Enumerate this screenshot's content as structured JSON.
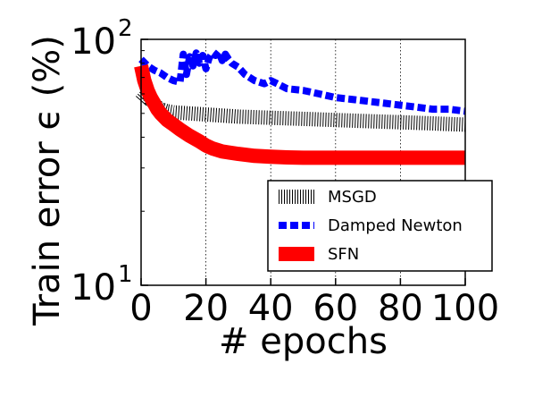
{
  "chart_data": {
    "type": "line",
    "xlabel": "# epochs",
    "ylabel": "Train error ϵ (%)",
    "yscale": "log",
    "xlim": [
      0,
      100
    ],
    "ylim": [
      10,
      100
    ],
    "grid": "vertical",
    "legend_position": "lower-right",
    "x_ticks": [
      "0",
      "20",
      "40",
      "60",
      "80",
      "100"
    ],
    "y_ticks": [
      {
        "base": "10",
        "exp": "2",
        "value": 100
      },
      {
        "base": "10",
        "exp": "1",
        "value": 10
      }
    ],
    "series": [
      {
        "name": "MSGD",
        "color": "#000000",
        "style": "hatched",
        "x": [
          0,
          1,
          2,
          3,
          4,
          5,
          6,
          8,
          10,
          15,
          20,
          25,
          30,
          40,
          50,
          60,
          70,
          80,
          90,
          100
        ],
        "values": [
          56,
          58,
          60,
          57,
          55,
          53,
          52,
          51,
          50.5,
          50,
          49.5,
          49,
          48.5,
          48,
          47.5,
          47,
          46.5,
          46,
          45.5,
          45
        ]
      },
      {
        "name": "Damped Newton",
        "color": "#0000ff",
        "style": "dashed",
        "x": [
          0,
          2,
          4,
          6,
          8,
          10,
          12,
          13,
          14,
          15,
          16,
          17,
          18,
          19,
          20,
          21,
          22,
          23,
          24,
          25,
          26,
          27,
          28,
          30,
          32,
          35,
          38,
          40,
          42,
          45,
          50,
          55,
          60,
          65,
          70,
          75,
          80,
          85,
          90,
          95,
          100
        ],
        "values": [
          83,
          78,
          75,
          73,
          70,
          68,
          67,
          87,
          72,
          85,
          78,
          88,
          80,
          86,
          76,
          84,
          88,
          86,
          89,
          82,
          87,
          83,
          80,
          77,
          72,
          68,
          66,
          68,
          66,
          63,
          62,
          60,
          58,
          57,
          56,
          55,
          54,
          53,
          52,
          52,
          51
        ]
      },
      {
        "name": "SFN",
        "color": "#ff0000",
        "style": "solid-thick",
        "x": [
          0,
          1,
          2,
          3,
          4,
          5,
          6,
          8,
          10,
          12,
          15,
          18,
          20,
          22,
          25,
          30,
          35,
          40,
          45,
          50,
          60,
          70,
          80,
          90,
          100
        ],
        "values": [
          78,
          68,
          62,
          58,
          55,
          52,
          50,
          47,
          45,
          43,
          40.5,
          38.5,
          37,
          36,
          35,
          34.2,
          33.6,
          33.3,
          33.1,
          33,
          33,
          33,
          33,
          33,
          33
        ]
      }
    ]
  }
}
